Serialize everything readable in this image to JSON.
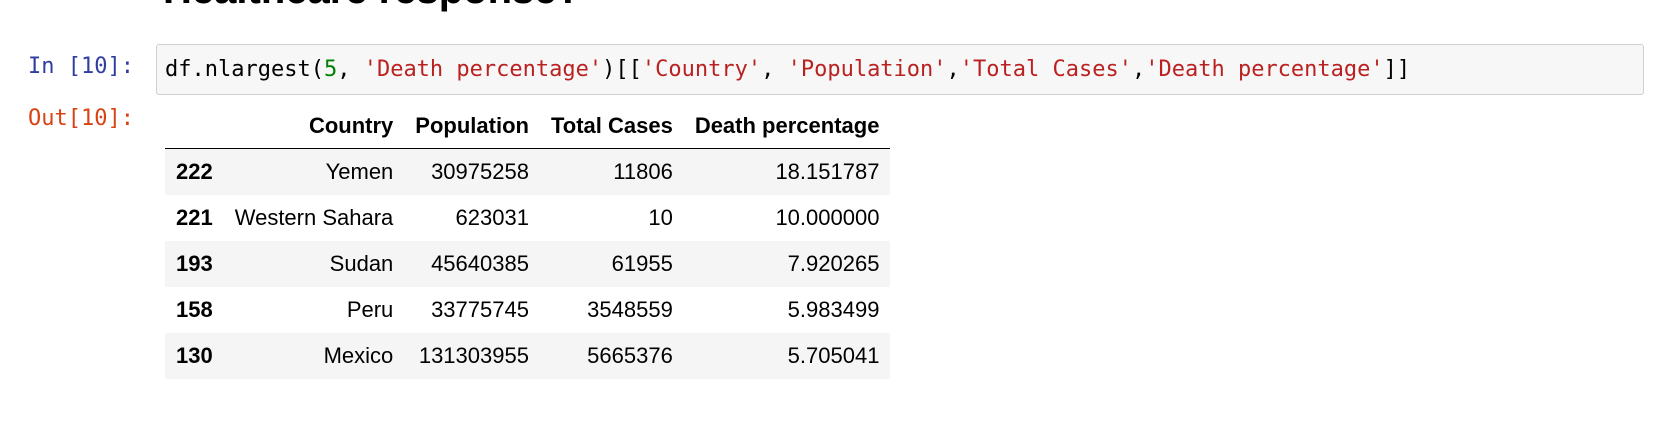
{
  "heading": "Healthcare response?",
  "input_cell": {
    "prompt": "In [10]:",
    "code_tokens": [
      {
        "text": "df.nlargest(",
        "kind": "plain"
      },
      {
        "text": "5",
        "kind": "num"
      },
      {
        "text": ", ",
        "kind": "plain"
      },
      {
        "text": "'Death percentage'",
        "kind": "str"
      },
      {
        "text": ")[[",
        "kind": "plain"
      },
      {
        "text": "'Country'",
        "kind": "str"
      },
      {
        "text": ", ",
        "kind": "plain"
      },
      {
        "text": "'Population'",
        "kind": "str"
      },
      {
        "text": ",",
        "kind": "plain"
      },
      {
        "text": "'Total Cases'",
        "kind": "str"
      },
      {
        "text": ",",
        "kind": "plain"
      },
      {
        "text": "'Death percentage'",
        "kind": "str"
      },
      {
        "text": "]]",
        "kind": "plain"
      }
    ]
  },
  "output_cell": {
    "prompt": "Out[10]:",
    "table": {
      "columns": [
        "",
        "Country",
        "Population",
        "Total Cases",
        "Death percentage"
      ],
      "rows": [
        {
          "index": "222",
          "values": [
            "Yemen",
            "30975258",
            "11806",
            "18.151787"
          ]
        },
        {
          "index": "221",
          "values": [
            "Western Sahara",
            "623031",
            "10",
            "10.000000"
          ]
        },
        {
          "index": "193",
          "values": [
            "Sudan",
            "45640385",
            "61955",
            "7.920265"
          ]
        },
        {
          "index": "158",
          "values": [
            "Peru",
            "33775745",
            "3548559",
            "5.983499"
          ]
        },
        {
          "index": "130",
          "values": [
            "Mexico",
            "131303955",
            "5665376",
            "5.705041"
          ]
        }
      ]
    }
  },
  "colors": {
    "in_prompt": "#303F9F",
    "out_prompt": "#D84315",
    "code_string": "#BA2121",
    "code_number": "#008000",
    "code_bg": "#f7f7f7",
    "stripe": "#f5f5f5"
  }
}
